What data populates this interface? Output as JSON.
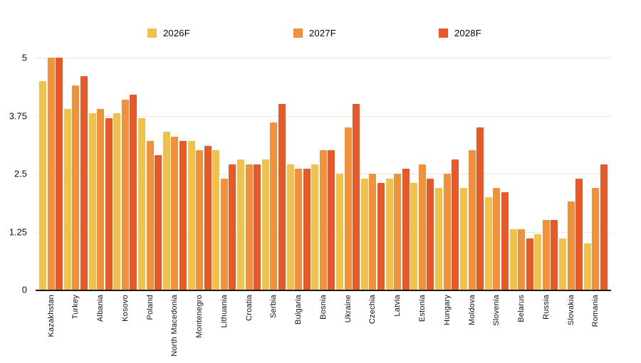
{
  "chart_data": {
    "type": "bar",
    "title": "",
    "categories": [
      "Kazakhstan",
      "Turkey",
      "Albania",
      "Kosovo",
      "Poland",
      "North Macedonia",
      "Montenegro",
      "Lithuania",
      "Croatia",
      "Serbia",
      "Bulgaria",
      "Bosnia",
      "Ukraine",
      "Czechia",
      "Latvia",
      "Estonia",
      "Hungary",
      "Moldova",
      "Slovenia",
      "Belarus",
      "Russia",
      "Slovakia",
      "Romania"
    ],
    "series": [
      {
        "name": "2026F",
        "color": "#F0C24B",
        "values": [
          4.5,
          3.9,
          3.8,
          3.8,
          3.7,
          3.4,
          3.2,
          3.0,
          2.8,
          2.8,
          2.7,
          2.7,
          2.5,
          2.4,
          2.4,
          2.3,
          2.2,
          2.2,
          2.0,
          1.3,
          1.2,
          1.1,
          1.0
        ]
      },
      {
        "name": "2027F",
        "color": "#F1913C",
        "values": [
          5.0,
          4.4,
          3.9,
          4.1,
          3.2,
          3.3,
          3.0,
          2.4,
          2.7,
          3.6,
          2.6,
          3.0,
          3.5,
          2.5,
          2.5,
          2.7,
          2.5,
          3.0,
          2.2,
          1.3,
          1.5,
          1.9,
          2.2
        ]
      },
      {
        "name": "2028F",
        "color": "#E8592A",
        "values": [
          5.0,
          4.6,
          3.7,
          4.2,
          2.9,
          3.2,
          3.1,
          2.7,
          2.7,
          4.0,
          2.6,
          3.0,
          4.0,
          2.3,
          2.6,
          2.4,
          2.8,
          3.5,
          2.1,
          1.1,
          1.5,
          2.4,
          2.7
        ]
      }
    ],
    "ylim": [
      0,
      5
    ],
    "yticks": [
      0,
      1.25,
      2.5,
      3.75,
      5
    ],
    "ytick_labels": [
      "0",
      "1.25",
      "2.5",
      "3.75",
      "5"
    ],
    "grid": true,
    "legend_position": "top"
  },
  "colors": {
    "background": "#ffffff",
    "gridline": "#e6e6e6",
    "axis_line": "#1a1a1a",
    "text": "#111111"
  }
}
